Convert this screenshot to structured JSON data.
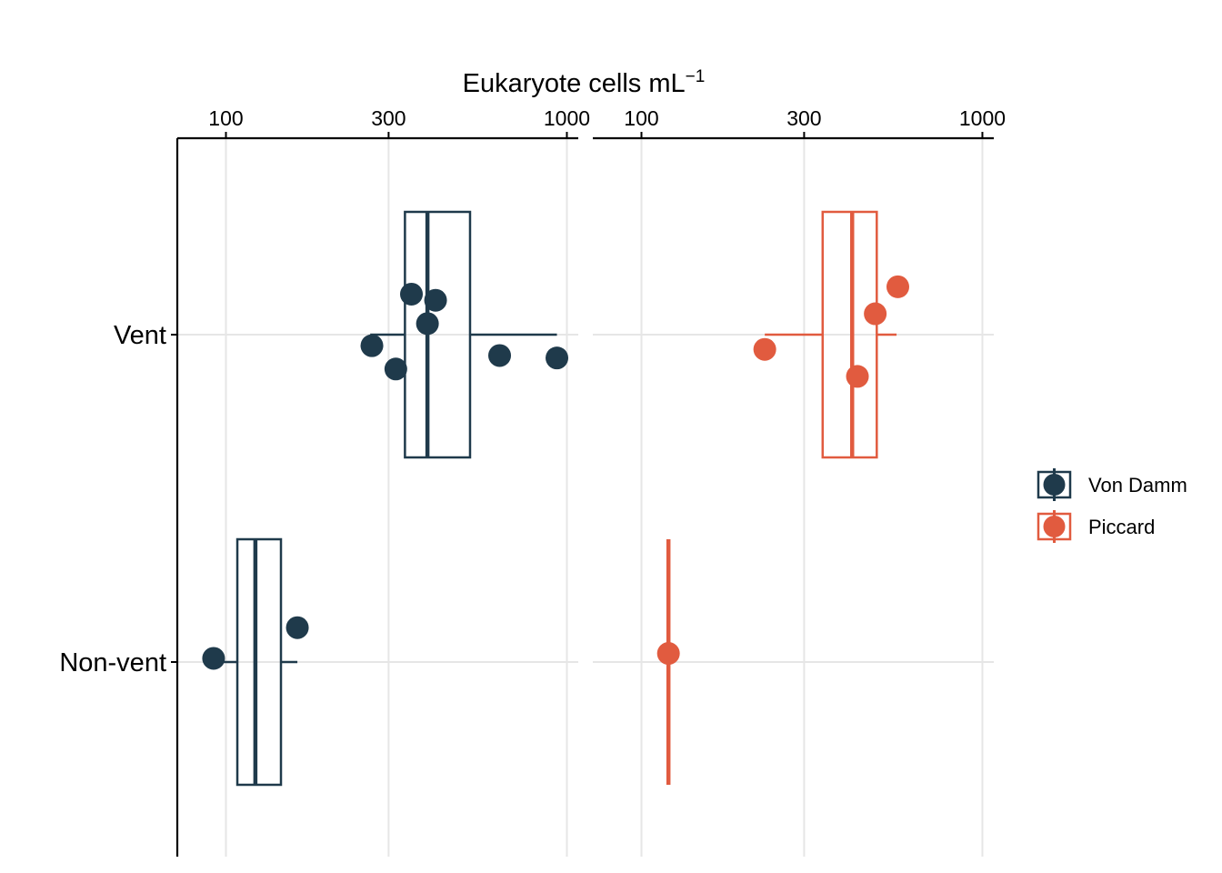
{
  "chart_data": {
    "type": "boxplot",
    "title": "",
    "xlabel": "Eukaryote cells  mL",
    "xlabel_superscript": "−1",
    "x_scale": "log10",
    "xlim": [
      72,
      1080
    ],
    "x_ticks": [
      100,
      300,
      1000
    ],
    "x_tick_labels": [
      "100",
      "300",
      "1000"
    ],
    "categories": [
      "Vent",
      "Non-vent"
    ],
    "grid": true,
    "legend_position": "right",
    "colors": {
      "Von Damm": "#1f3a4b",
      "Piccard": "#e15b3f"
    },
    "series": [
      {
        "name": "Von Damm",
        "boxes": [
          {
            "category": "Vent",
            "whisker_low": 265,
            "q1": 335,
            "median": 390,
            "q3": 520,
            "whisker_high": 935
          },
          {
            "category": "Non-vent",
            "whisker_low": 95,
            "q1": 108,
            "median": 122,
            "q3": 145,
            "whisker_high": 162
          }
        ],
        "points": [
          {
            "category": "Vent",
            "value": 350,
            "jitter": 0.33
          },
          {
            "category": "Vent",
            "value": 412,
            "jitter": 0.28
          },
          {
            "category": "Vent",
            "value": 390,
            "jitter": 0.09
          },
          {
            "category": "Vent",
            "value": 268,
            "jitter": -0.09
          },
          {
            "category": "Vent",
            "value": 635,
            "jitter": -0.17
          },
          {
            "category": "Vent",
            "value": 935,
            "jitter": -0.19
          },
          {
            "category": "Vent",
            "value": 315,
            "jitter": -0.28
          },
          {
            "category": "Non-vent",
            "value": 162,
            "jitter": 0.28
          },
          {
            "category": "Non-vent",
            "value": 92,
            "jitter": 0.03
          }
        ]
      },
      {
        "name": "Piccard",
        "boxes": [
          {
            "category": "Vent",
            "whisker_low": 230,
            "q1": 340,
            "median": 415,
            "q3": 490,
            "whisker_high": 560
          },
          {
            "category": "Non-vent",
            "whisker_low": 120,
            "q1": 120,
            "median": 120,
            "q3": 120,
            "whisker_high": 120
          }
        ],
        "points": [
          {
            "category": "Vent",
            "value": 565,
            "jitter": 0.39
          },
          {
            "category": "Vent",
            "value": 485,
            "jitter": 0.17
          },
          {
            "category": "Vent",
            "value": 230,
            "jitter": -0.12
          },
          {
            "category": "Vent",
            "value": 430,
            "jitter": -0.34
          },
          {
            "category": "Non-vent",
            "value": 120,
            "jitter": 0.07
          }
        ]
      }
    ]
  }
}
